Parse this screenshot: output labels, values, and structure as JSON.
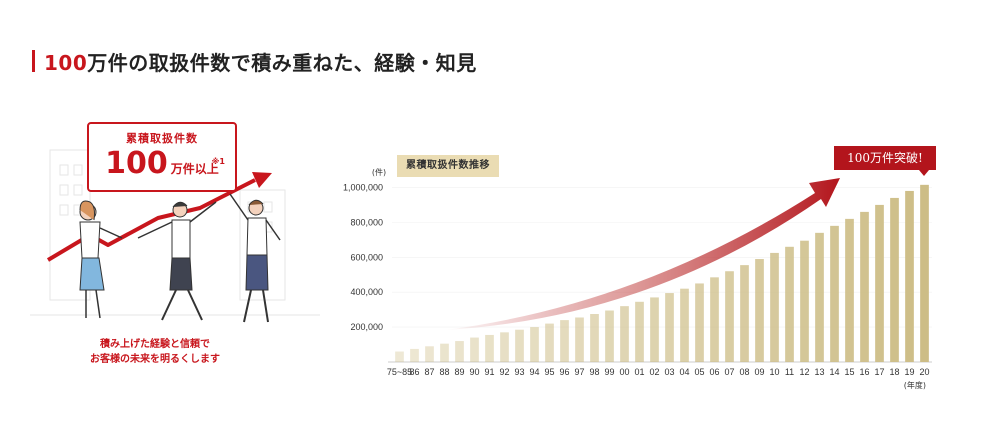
{
  "heading": {
    "number": "100",
    "rest": "万件の取扱件数で積み重ねた、経験・知見"
  },
  "badge": {
    "label": "累積取扱件数",
    "number": "100",
    "unit": "万件以上",
    "note": "※1"
  },
  "slogan": {
    "line1": "積み上げた経験と信頼で",
    "line2": "お客様の未来を明るくします"
  },
  "callout": "100万件突破!",
  "colors": {
    "accent": "#c8161d",
    "bar": "#cdbd86",
    "label_bg": "#eadcb3",
    "arrow": "#b3151c"
  },
  "chart_data": {
    "type": "bar",
    "title": "累積取扱件数推移",
    "ylabel": "(件)",
    "xlabel": "(年度)",
    "ylim": [
      0,
      1100000
    ],
    "yticks": [
      200000,
      400000,
      600000,
      800000,
      1000000
    ],
    "ytick_labels": [
      "200,000",
      "400,000",
      "600,000",
      "800,000",
      "1,000,000"
    ],
    "categories": [
      "75~85",
      "86",
      "87",
      "88",
      "89",
      "90",
      "91",
      "92",
      "93",
      "94",
      "95",
      "96",
      "97",
      "98",
      "99",
      "00",
      "01",
      "02",
      "03",
      "04",
      "05",
      "06",
      "07",
      "08",
      "09",
      "10",
      "11",
      "12",
      "13",
      "14",
      "15",
      "16",
      "17",
      "18",
      "19",
      "20"
    ],
    "values": [
      60000,
      75000,
      90000,
      105000,
      120000,
      140000,
      155000,
      170000,
      185000,
      200000,
      220000,
      240000,
      255000,
      275000,
      295000,
      320000,
      345000,
      370000,
      395000,
      420000,
      450000,
      485000,
      520000,
      555000,
      590000,
      625000,
      660000,
      695000,
      740000,
      780000,
      820000,
      860000,
      900000,
      940000,
      980000,
      1015000
    ]
  }
}
